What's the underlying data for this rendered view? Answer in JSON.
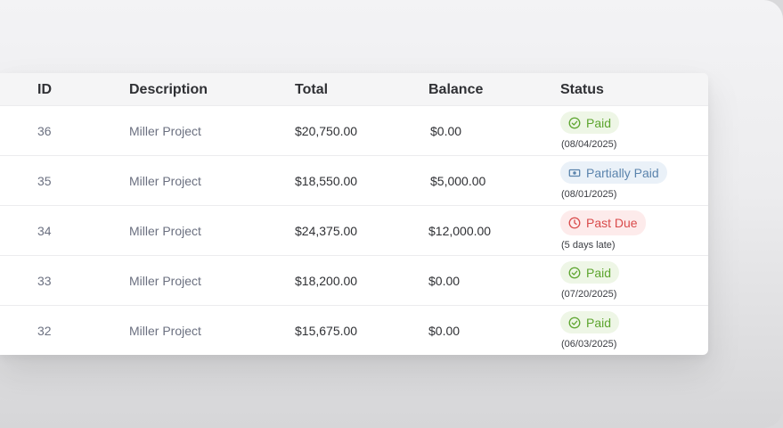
{
  "table": {
    "headers": {
      "id": "ID",
      "description": "Description",
      "total": "Total",
      "balance": "Balance",
      "status": "Status"
    },
    "rows": [
      {
        "id": "36",
        "description": "Miller Project",
        "total": "$20,750.00",
        "balance": "$0.00",
        "status": "Paid",
        "status_icon": "check-circle-icon",
        "note": "(08/04/2025)"
      },
      {
        "id": "35",
        "description": "Miller Project",
        "total": "$18,550.00",
        "balance": "$5,000.00",
        "status": "Partially Paid",
        "status_icon": "cash-icon",
        "note": "(08/01/2025)"
      },
      {
        "id": "34",
        "description": "Miller Project",
        "total": "$24,375.00",
        "balance": "$12,000.00",
        "status": "Past Due",
        "status_icon": "clock-icon",
        "note": "(5 days late)"
      },
      {
        "id": "33",
        "description": "Miller Project",
        "total": "$18,200.00",
        "balance": "$0.00",
        "status": "Paid",
        "status_icon": "check-circle-icon",
        "note": "(07/20/2025)"
      },
      {
        "id": "32",
        "description": "Miller Project",
        "total": "$15,675.00",
        "balance": "$0.00",
        "status": "Paid",
        "status_icon": "check-circle-icon",
        "note": "(06/03/2025)"
      }
    ]
  },
  "colors": {
    "paid": "#5da52f",
    "partial": "#5b84ad",
    "past_due": "#d94b4b"
  }
}
